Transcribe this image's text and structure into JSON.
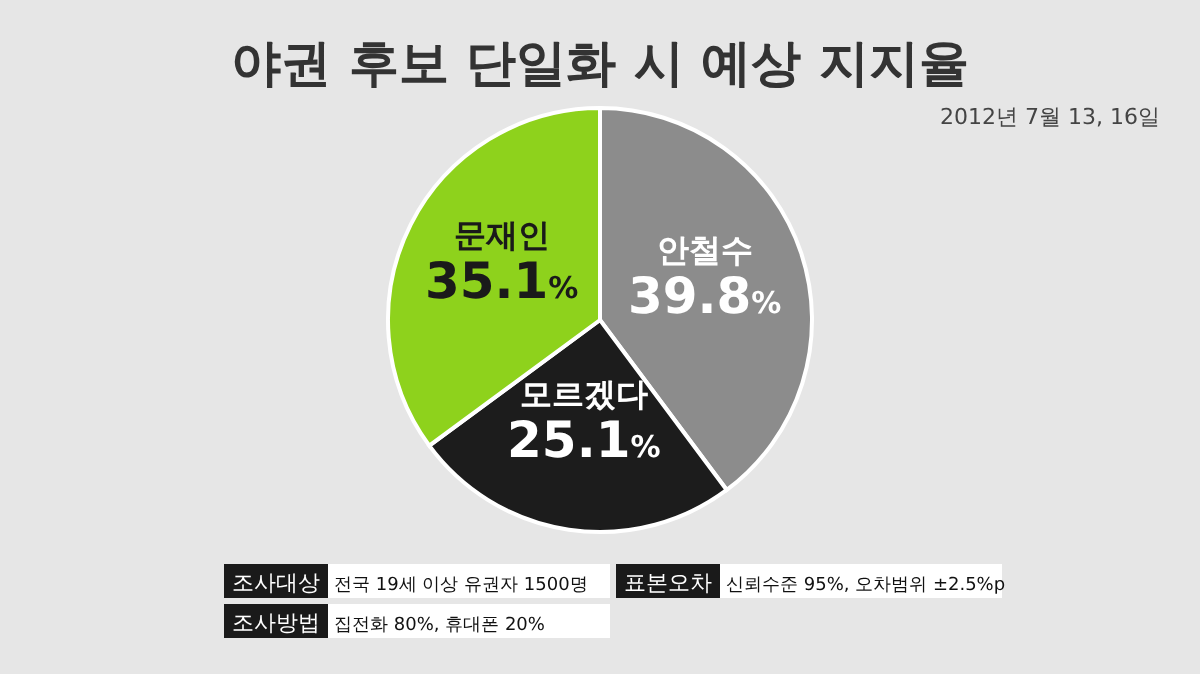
{
  "chart_data": {
    "type": "pie",
    "title": "야권 후보 단일화 시 예상 지지율",
    "subtitle": "2012년 7월 13, 16일",
    "categories": [
      "안철수",
      "모르겠다",
      "문재인"
    ],
    "values": [
      39.8,
      25.1,
      35.1
    ],
    "colors": [
      "#8c8c8c",
      "#1c1c1c",
      "#8ed21c"
    ],
    "value_labels": [
      "39.8%",
      "25.1%",
      "35.1%"
    ],
    "annotations": [
      "조사대상",
      "전국 19세 이상 유권자 1500명",
      "표본오차",
      "신뢰수준 95%, 오차범위 ±2.5%p",
      "조사방법",
      "집전화 80%, 휴대폰 20%"
    ]
  }
}
